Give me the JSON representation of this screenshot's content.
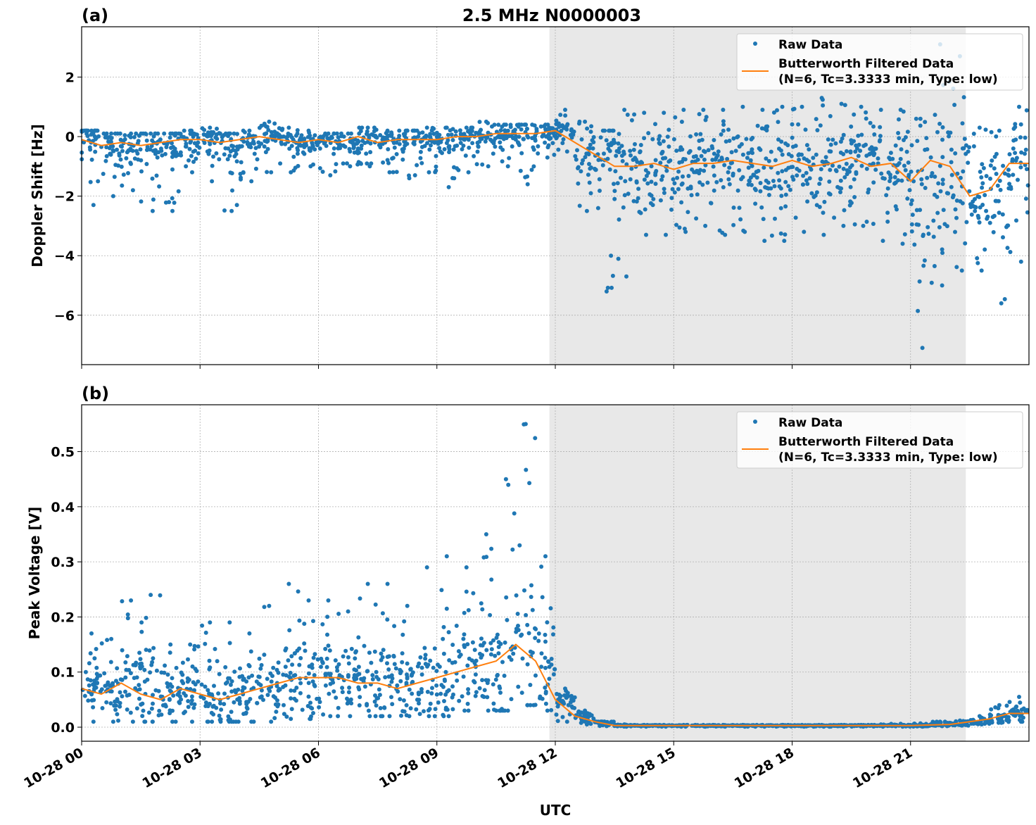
{
  "title": "2.5 MHz N0000003",
  "xlabel": "UTC",
  "x_tick_labels": [
    "10-28 00",
    "10-28 03",
    "10-28 06",
    "10-28 09",
    "10-28 12",
    "10-28 15",
    "10-28 18",
    "10-28 21"
  ],
  "colors": {
    "raw": "#1f77b4",
    "filtered": "#ff7f0e",
    "shade": "#e8e8e8"
  },
  "chart_data": [
    {
      "type": "scatter",
      "panel_label": "(a)",
      "ylabel": "Doppler Shift [Hz]",
      "xlim_hours": [
        0,
        24
      ],
      "ylim": [
        -7.66,
        3.69
      ],
      "y_ticks": [
        2,
        0,
        -2,
        -4,
        -6
      ],
      "y_tick_labels": [
        "2",
        "0",
        "−2",
        "−4",
        "−6"
      ],
      "grid": true,
      "legend_position": "top-right",
      "legend": {
        "raw": "Raw Data",
        "filtered_line1": "Butterworth Filtered Data",
        "filtered_line2": "(N=6, Tc=3.3333 min, Type: low)"
      },
      "shaded_interval_hours": [
        11.85,
        22.4
      ],
      "x_hours": [
        0,
        0.5,
        1,
        1.5,
        2,
        2.5,
        3,
        3.5,
        4,
        4.5,
        5,
        5.5,
        6,
        6.5,
        7,
        7.5,
        8,
        8.5,
        9,
        9.5,
        10,
        10.5,
        11,
        11.5,
        12,
        12.5,
        13,
        13.5,
        14,
        14.5,
        15,
        15.5,
        16,
        16.5,
        17,
        17.5,
        18,
        18.5,
        19,
        19.5,
        20,
        20.5,
        21,
        21.5,
        22,
        22.5,
        23,
        23.5
      ],
      "series": [
        {
          "name": "Butterworth Filtered Data",
          "values": [
            -0.1,
            -0.3,
            -0.2,
            -0.3,
            -0.2,
            -0.1,
            -0.1,
            -0.2,
            -0.1,
            0.0,
            -0.1,
            -0.2,
            -0.1,
            -0.2,
            0.0,
            -0.2,
            -0.1,
            -0.1,
            -0.1,
            0.0,
            0.0,
            0.1,
            0.1,
            0.1,
            0.2,
            -0.2,
            -0.6,
            -1.0,
            -1.0,
            -0.9,
            -1.1,
            -0.9,
            -0.9,
            -0.8,
            -0.9,
            -1.0,
            -0.8,
            -1.0,
            -0.9,
            -0.7,
            -1.0,
            -0.9,
            -1.5,
            -0.8,
            -1.0,
            -2.0,
            -1.8,
            -0.9
          ]
        },
        {
          "name": "Raw Data",
          "low": [
            -2.3,
            -2.0,
            -1.8,
            -2.5,
            -2.5,
            -1.2,
            -1.5,
            -2.5,
            -1.5,
            -1.2,
            -1.2,
            -1.0,
            -1.3,
            -1.0,
            -1.0,
            -1.2,
            -1.4,
            -1.2,
            -1.7,
            -1.2,
            -1.0,
            -1.0,
            -1.6,
            -0.7,
            -0.5,
            -2.5,
            -5.2,
            -4.7,
            -3.3,
            -3.3,
            -3.2,
            -3.0,
            -3.3,
            -3.2,
            -3.5,
            -3.5,
            -3.2,
            -3.3,
            -3.0,
            -3.0,
            -3.5,
            -3.6,
            -7.1,
            -5.0,
            -4.5,
            -4.5,
            -5.6,
            -4.2
          ],
          "high": [
            0.2,
            0.1,
            0.1,
            0.1,
            0.1,
            0.2,
            0.3,
            0.1,
            0.2,
            0.5,
            0.3,
            0.2,
            0.1,
            0.1,
            0.3,
            0.2,
            0.2,
            0.3,
            0.3,
            0.3,
            0.5,
            0.4,
            0.4,
            0.4,
            0.9,
            0.5,
            0.2,
            0.9,
            0.8,
            0.8,
            0.9,
            0.9,
            0.9,
            1.0,
            0.9,
            1.0,
            1.0,
            1.3,
            1.1,
            1.0,
            0.9,
            0.9,
            0.6,
            3.1,
            2.7,
            0.3,
            0.2,
            1.0
          ]
        }
      ]
    },
    {
      "type": "scatter",
      "panel_label": "(b)",
      "ylabel": "Peak Voltage [V]",
      "xlim_hours": [
        0,
        24
      ],
      "ylim": [
        -0.0255,
        0.585
      ],
      "y_ticks": [
        0.0,
        0.1,
        0.2,
        0.3,
        0.4,
        0.5
      ],
      "y_tick_labels": [
        "0.0",
        "0.1",
        "0.2",
        "0.3",
        "0.4",
        "0.5"
      ],
      "grid": true,
      "legend_position": "top-right",
      "legend": {
        "raw": "Raw Data",
        "filtered_line1": "Butterworth Filtered Data",
        "filtered_line2": "(N=6, Tc=3.3333 min, Type: low)"
      },
      "shaded_interval_hours": [
        11.85,
        22.4
      ],
      "x_hours": [
        0,
        0.5,
        1,
        1.5,
        2,
        2.5,
        3,
        3.5,
        4,
        4.5,
        5,
        5.5,
        6,
        6.5,
        7,
        7.5,
        8,
        8.5,
        9,
        9.5,
        10,
        10.5,
        11,
        11.5,
        12,
        12.5,
        13,
        13.5,
        14,
        14.5,
        15,
        15.5,
        16,
        16.5,
        17,
        17.5,
        18,
        18.5,
        19,
        19.5,
        20,
        20.5,
        21,
        21.5,
        22,
        22.5,
        23,
        23.5
      ],
      "series": [
        {
          "name": "Butterworth Filtered Data",
          "values": [
            0.07,
            0.06,
            0.08,
            0.06,
            0.05,
            0.07,
            0.06,
            0.05,
            0.06,
            0.07,
            0.08,
            0.09,
            0.09,
            0.09,
            0.08,
            0.08,
            0.07,
            0.08,
            0.09,
            0.1,
            0.11,
            0.12,
            0.15,
            0.12,
            0.05,
            0.02,
            0.01,
            0.003,
            0.003,
            0.003,
            0.003,
            0.003,
            0.003,
            0.003,
            0.003,
            0.003,
            0.003,
            0.003,
            0.003,
            0.003,
            0.003,
            0.003,
            0.003,
            0.004,
            0.005,
            0.01,
            0.015,
            0.025
          ]
        },
        {
          "name": "Raw Data",
          "low": [
            0.01,
            0.01,
            0.01,
            0.01,
            0.01,
            0.01,
            0.01,
            0.01,
            0.01,
            0.01,
            0.015,
            0.015,
            0.02,
            0.02,
            0.02,
            0.02,
            0.02,
            0.02,
            0.02,
            0.03,
            0.03,
            0.03,
            0.04,
            0.03,
            0.01,
            0.005,
            0.002,
            0.001,
            0.001,
            0.001,
            0.001,
            0.001,
            0.001,
            0.001,
            0.001,
            0.001,
            0.001,
            0.001,
            0.001,
            0.001,
            0.001,
            0.001,
            0.001,
            0.002,
            0.003,
            0.005,
            0.008,
            0.01
          ],
          "high": [
            0.17,
            0.16,
            0.23,
            0.24,
            0.15,
            0.15,
            0.19,
            0.19,
            0.17,
            0.22,
            0.26,
            0.23,
            0.23,
            0.21,
            0.26,
            0.26,
            0.22,
            0.29,
            0.31,
            0.29,
            0.35,
            0.45,
            0.55,
            0.31,
            0.07,
            0.03,
            0.01,
            0.005,
            0.004,
            0.004,
            0.004,
            0.004,
            0.004,
            0.004,
            0.004,
            0.004,
            0.004,
            0.004,
            0.004,
            0.004,
            0.005,
            0.006,
            0.007,
            0.01,
            0.012,
            0.02,
            0.04,
            0.055
          ]
        }
      ]
    }
  ]
}
